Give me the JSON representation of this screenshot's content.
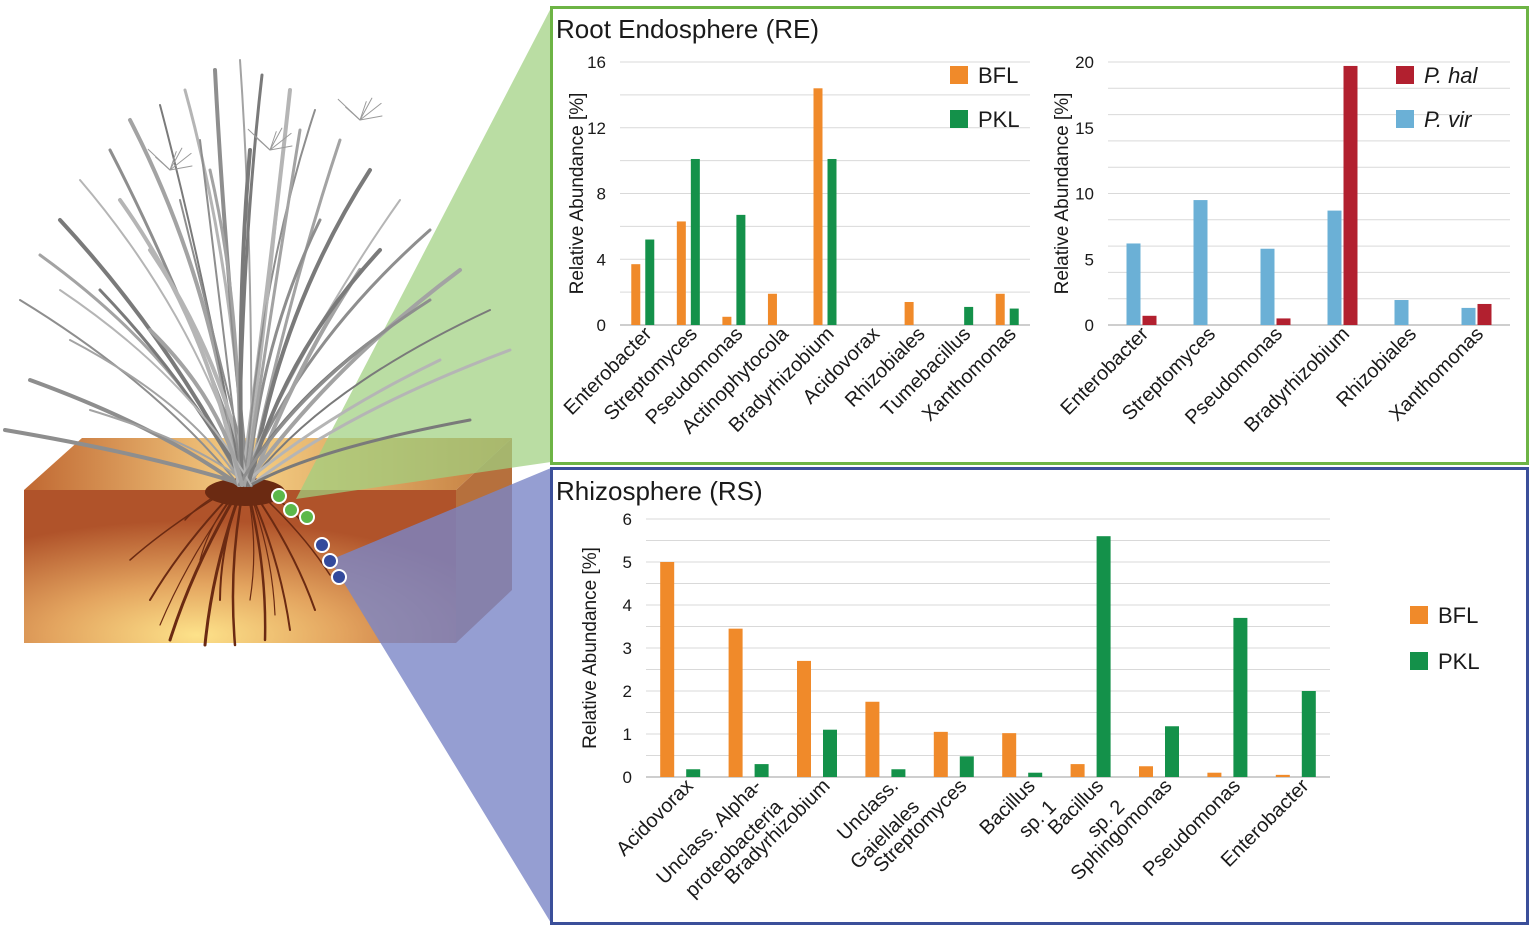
{
  "colors": {
    "bfl": "#f08a2a",
    "pkl": "#14914a",
    "p_hal": "#b2202f",
    "p_vir": "#6bb0d6",
    "re_border": "#6db445",
    "rs_border": "#3b4f9a",
    "re_cone": "#9fd07f",
    "rs_cone": "#7a86c7",
    "grid": "#d9d9d9"
  },
  "chart_data": [
    {
      "id": "re_left",
      "type": "bar",
      "panel_title": "Root Endosphere (RE)",
      "ylabel": "Relative Abundance [%]",
      "ylim": [
        0,
        16
      ],
      "yticks": [
        0,
        4,
        8,
        12,
        16
      ],
      "grid": true,
      "legend_position": "top-right",
      "categories": [
        "Enterobacter",
        "Streptomyces",
        "Pseudomonas",
        "Actinophytocola",
        "Bradyrhizobium",
        "Acidovorax",
        "Rhizobiales",
        "Tumebacillus",
        "Xanthomonas"
      ],
      "series": [
        {
          "name": "BFL",
          "color_key": "bfl",
          "values": [
            3.7,
            6.3,
            0.5,
            1.9,
            14.4,
            0,
            1.4,
            0,
            1.9
          ]
        },
        {
          "name": "PKL",
          "color_key": "pkl",
          "values": [
            5.2,
            10.1,
            6.7,
            0,
            10.1,
            0,
            0,
            1.1,
            1.0
          ]
        }
      ]
    },
    {
      "id": "re_right",
      "type": "bar",
      "ylabel": "Relative Abundance [%]",
      "ylim": [
        0,
        20
      ],
      "yticks": [
        0,
        5,
        10,
        15,
        20
      ],
      "grid": true,
      "legend_position": "top-right",
      "categories": [
        "Enterobacter",
        "Streptomyces",
        "Pseudomonas",
        "Bradyrhizobium",
        "Rhizobiales",
        "Xanthomonas"
      ],
      "series": [
        {
          "name": "P. vir",
          "color_key": "p_vir",
          "values": [
            6.2,
            9.5,
            5.8,
            8.7,
            1.9,
            1.3
          ]
        },
        {
          "name": "P. hal",
          "color_key": "p_hal",
          "values": [
            0.7,
            0,
            0.5,
            19.7,
            0,
            1.6
          ]
        }
      ],
      "legend_order": [
        "P. hal",
        "P. vir"
      ]
    },
    {
      "id": "rs",
      "type": "bar",
      "panel_title": "Rhizosphere (RS)",
      "ylabel": "Relative Abundance [%]",
      "ylim": [
        0,
        6
      ],
      "yticks": [
        0,
        1,
        2,
        3,
        4,
        5,
        6
      ],
      "grid": true,
      "legend_position": "right",
      "categories": [
        [
          "Acidovorax"
        ],
        [
          "Unclass. Alpha-",
          "proteobacteria"
        ],
        [
          "Bradyrhizobium"
        ],
        [
          "Unclass.",
          "Gaiellales"
        ],
        [
          "Streptomyces"
        ],
        [
          "Bacillus",
          "sp. 1"
        ],
        [
          "Bacillus",
          "sp. 2"
        ],
        [
          "Sphingomonas"
        ],
        [
          "Pseudomonas"
        ],
        [
          "Enterobacter"
        ]
      ],
      "series": [
        {
          "name": "BFL",
          "color_key": "bfl",
          "values": [
            5.0,
            3.45,
            2.7,
            1.75,
            1.05,
            1.02,
            0.3,
            0.25,
            0.1,
            0.05
          ]
        },
        {
          "name": "PKL",
          "color_key": "pkl",
          "values": [
            0.18,
            0.3,
            1.1,
            0.18,
            0.48,
            0.1,
            5.6,
            1.18,
            3.7,
            2.0
          ]
        }
      ]
    }
  ]
}
